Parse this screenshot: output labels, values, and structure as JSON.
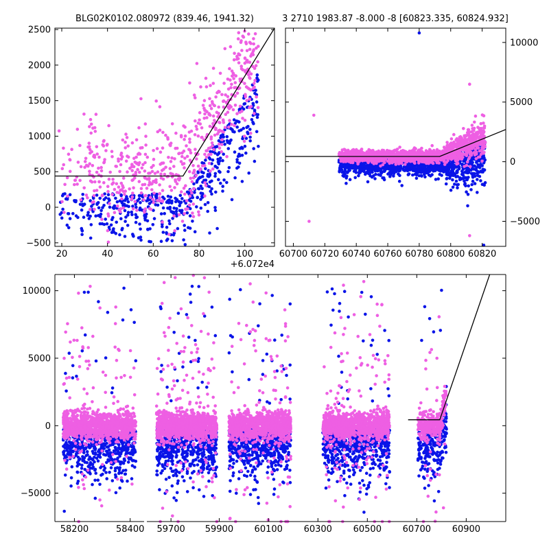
{
  "chart_data": [
    {
      "type": "scatter",
      "panel": "top-left",
      "title": "BLG02K0102.080972 (839.46, 1941.32)",
      "x_offset_label": "+6.072e4",
      "xlim": [
        17,
        113
      ],
      "ylim": [
        -550,
        2520
      ],
      "x_ticks": [
        20,
        40,
        60,
        80,
        100
      ],
      "y_ticks": [
        -500,
        0,
        500,
        1000,
        1500,
        2000,
        2500
      ],
      "series": [
        {
          "name": "blue",
          "color": "#0a14e8",
          "x_range": [
            18,
            106
          ],
          "y_range": [
            -520,
            2450
          ]
        },
        {
          "name": "pink",
          "color": "#ee5fe3",
          "x_range": [
            18,
            106
          ],
          "y_range": [
            -520,
            2450
          ]
        }
      ],
      "model_line": {
        "x": [
          17,
          73,
          113
        ],
        "y": [
          440,
          440,
          2520
        ]
      }
    },
    {
      "type": "scatter",
      "panel": "top-right",
      "title": "3 2710 1983.87 -8.000 -8 [60823.335, 60824.932]",
      "xlim": [
        60695,
        60835
      ],
      "ylim": [
        -7100,
        11200
      ],
      "x_ticks": [
        60700,
        60720,
        60740,
        60760,
        60780,
        60800,
        60820
      ],
      "y_ticks": [
        -5000,
        0,
        5000,
        10000
      ],
      "series": [
        {
          "name": "blue",
          "color": "#0a14e8"
        },
        {
          "name": "pink",
          "color": "#ee5fe3"
        }
      ],
      "model_line": {
        "x": [
          60695,
          60793,
          60835
        ],
        "y": [
          440,
          440,
          2700
        ]
      }
    },
    {
      "type": "scatter",
      "panel": "bottom",
      "title": "",
      "ylim": [
        -7100,
        11200
      ],
      "y_ticks": [
        -5000,
        0,
        5000,
        10000
      ],
      "segments": [
        {
          "xlim": [
            58130,
            58450
          ],
          "x_ticks": [
            58200,
            58400
          ],
          "seasons": [
            [
              58160,
              58420
            ]
          ]
        },
        {
          "xlim": [
            59600,
            59930
          ],
          "x_ticks": [
            59700,
            59900
          ],
          "seasons": [
            [
              59640,
              59890
            ]
          ]
        },
        {
          "xlim": [
            59930,
            61060
          ],
          "x_ticks": [
            60100,
            60300,
            60500,
            60700,
            60900
          ],
          "seasons": [
            [
              59940,
              60190
            ],
            [
              60320,
              60590
            ],
            [
              60705,
              60820
            ]
          ]
        }
      ],
      "series": [
        {
          "name": "blue",
          "color": "#0a14e8"
        },
        {
          "name": "pink",
          "color": "#ee5fe3"
        }
      ],
      "model_line": {
        "x": [
          60665,
          60793,
          60995
        ],
        "y": [
          440,
          440,
          11200
        ]
      }
    }
  ]
}
